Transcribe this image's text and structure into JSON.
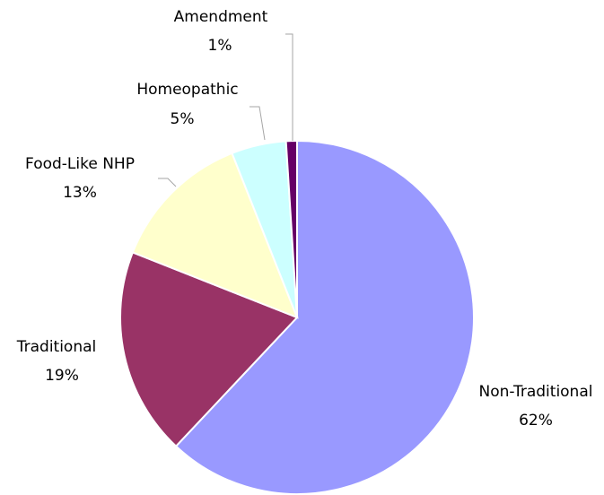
{
  "chart_data": {
    "type": "pie",
    "title": "",
    "slices": [
      {
        "label": "Non-Traditional",
        "value": 62,
        "value_label": "62%",
        "color": "#9999ff"
      },
      {
        "label": "Traditional",
        "value": 19,
        "value_label": "19%",
        "color": "#993366"
      },
      {
        "label": "Food-Like NHP",
        "value": 13,
        "value_label": "13%",
        "color": "#ffffcc"
      },
      {
        "label": "Homeopathic",
        "value": 5,
        "value_label": "5%",
        "color": "#ccffff"
      },
      {
        "label": "Amendment",
        "value": 1,
        "value_label": "1%",
        "color": "#660066"
      }
    ],
    "start_angle": "12 o'clock",
    "direction": "clockwise",
    "legend": "none"
  }
}
